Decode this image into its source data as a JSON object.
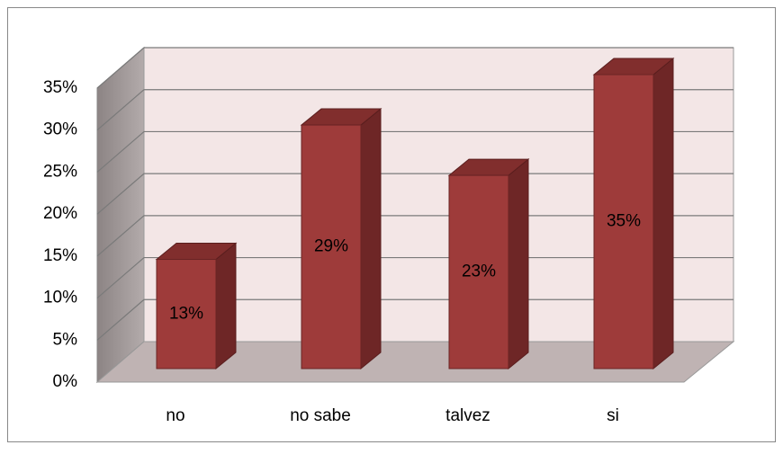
{
  "chart_data": {
    "type": "bar3d",
    "categories": [
      "no",
      "no sabe",
      "talvez",
      "si"
    ],
    "values": [
      13,
      29,
      23,
      35
    ],
    "value_labels": [
      "13%",
      "29%",
      "23%",
      "35%"
    ],
    "color": "#9e3b3a",
    "ylim": [
      0,
      35
    ],
    "yticks": [
      {
        "value": 0,
        "label": "0%"
      },
      {
        "value": 5,
        "label": "5%"
      },
      {
        "value": 10,
        "label": "10%"
      },
      {
        "value": 15,
        "label": "15%"
      },
      {
        "value": 20,
        "label": "20%"
      },
      {
        "value": 25,
        "label": "25%"
      },
      {
        "value": 30,
        "label": "30%"
      },
      {
        "value": 35,
        "label": "35%"
      }
    ],
    "grid": true
  }
}
